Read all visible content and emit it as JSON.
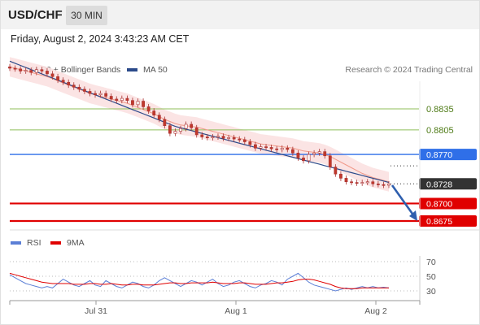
{
  "header": {
    "symbol": "USD/CHF",
    "timeframe": "30 MIN"
  },
  "datetime": "Friday, August 2, 2024 3:43:23 AM CET",
  "legend": [
    {
      "label": "MA 20 + Bollinger Bands",
      "color": "#f4a0a0"
    },
    {
      "label": "MA 50",
      "color": "#2b4a8a"
    }
  ],
  "credit": "Research © 2024 Trading Central",
  "rsi_legend": [
    {
      "label": "RSI",
      "color": "#5b7fd6"
    },
    {
      "label": "9MA",
      "color": "#e00000"
    }
  ],
  "chart_data": {
    "type": "line",
    "price_levels": [
      {
        "label": "0.8835",
        "value": 0.8835,
        "style": "resistance",
        "color": "#8fbf5a"
      },
      {
        "label": "0.8805",
        "value": 0.8805,
        "style": "resistance",
        "color": "#8fbf5a"
      },
      {
        "label": "0.8770",
        "value": 0.877,
        "style": "pivot",
        "color": "#2f6fe8"
      },
      {
        "label": "0.8728",
        "value": 0.8728,
        "style": "last",
        "color": "#333333"
      },
      {
        "label": "0.8700",
        "value": 0.87,
        "style": "support",
        "color": "#e00000"
      },
      {
        "label": "0.8675",
        "value": 0.8675,
        "style": "support",
        "color": "#e00000"
      }
    ],
    "price_close": [
      0.8893,
      0.8892,
      0.8889,
      0.889,
      0.8887,
      0.8891,
      0.8889,
      0.8885,
      0.8881,
      0.8876,
      0.8873,
      0.8869,
      0.8866,
      0.8863,
      0.886,
      0.8857,
      0.8855,
      0.8857,
      0.8853,
      0.8849,
      0.8847,
      0.885,
      0.8847,
      0.8841,
      0.8846,
      0.8838,
      0.8832,
      0.8826,
      0.882,
      0.8811,
      0.88,
      0.8803,
      0.8807,
      0.8813,
      0.8808,
      0.8798,
      0.8795,
      0.8794,
      0.8795,
      0.8796,
      0.8793,
      0.8794,
      0.8792,
      0.8791,
      0.8788,
      0.8784,
      0.8779,
      0.8781,
      0.878,
      0.8778,
      0.8777,
      0.8779,
      0.8777,
      0.8772,
      0.8765,
      0.8761,
      0.877,
      0.8772,
      0.8774,
      0.8768,
      0.8752,
      0.8742,
      0.8736,
      0.8731,
      0.873,
      0.8729,
      0.873,
      0.8731,
      0.8728,
      0.8727,
      0.8726,
      0.8728
    ],
    "ma20": [
      0.8895,
      0.8893,
      0.8891,
      0.8889,
      0.8887,
      0.8885,
      0.8883,
      0.8881,
      0.8878,
      0.8875,
      0.8872,
      0.8869,
      0.8866,
      0.8863,
      0.886,
      0.8857,
      0.8855,
      0.8853,
      0.8851,
      0.8849,
      0.8847,
      0.8845,
      0.8843,
      0.884,
      0.8837,
      0.8834,
      0.8831,
      0.8828,
      0.8824,
      0.882,
      0.8817,
      0.8814,
      0.8812,
      0.8811,
      0.881,
      0.8809,
      0.8807,
      0.8805,
      0.8803,
      0.8801,
      0.8799,
      0.8797,
      0.8795,
      0.8793,
      0.8791,
      0.8789,
      0.8787,
      0.8785,
      0.8784,
      0.8783,
      0.8782,
      0.8781,
      0.878,
      0.8779,
      0.8777,
      0.8775,
      0.8774,
      0.8773,
      0.8772,
      0.877,
      0.8767,
      0.8763,
      0.8759,
      0.8755,
      0.8751,
      0.8747,
      0.8743,
      0.874,
      0.8737,
      0.8735,
      0.8733,
      0.8731
    ],
    "ma50": [
      0.8903,
      0.89,
      0.8897,
      0.8894,
      0.8891,
      0.8888,
      0.8885,
      0.8882,
      0.8879,
      0.8876,
      0.8873,
      0.887,
      0.8867,
      0.8864,
      0.8861,
      0.8858,
      0.8855,
      0.8852,
      0.8849,
      0.8846,
      0.8843,
      0.884,
      0.8837,
      0.8834,
      0.8831,
      0.8828,
      0.8825,
      0.8822,
      0.8819,
      0.8816,
      0.8813,
      0.881,
      0.8808,
      0.8806,
      0.8804,
      0.8802,
      0.88,
      0.8798,
      0.8796,
      0.8794,
      0.8792,
      0.879,
      0.8788,
      0.8786,
      0.8784,
      0.8782,
      0.878,
      0.8778,
      0.8776,
      0.8774,
      0.8772,
      0.877,
      0.8768,
      0.8766,
      0.8764,
      0.8762,
      0.876,
      0.8758,
      0.8756,
      0.8754,
      0.8752,
      0.875,
      0.8748,
      0.8746,
      0.8744,
      0.8742,
      0.874,
      0.8738,
      0.8736,
      0.8734,
      0.8732,
      0.873
    ],
    "rsi": [
      52,
      48,
      44,
      40,
      38,
      36,
      34,
      36,
      34,
      40,
      46,
      42,
      38,
      36,
      40,
      44,
      38,
      36,
      44,
      40,
      36,
      34,
      38,
      42,
      40,
      36,
      34,
      38,
      44,
      48,
      44,
      40,
      36,
      40,
      44,
      42,
      38,
      42,
      46,
      40,
      36,
      38,
      42,
      44,
      40,
      36,
      34,
      38,
      40,
      44,
      42,
      38,
      46,
      50,
      54,
      48,
      42,
      38,
      36,
      34,
      32,
      30,
      32,
      34,
      32,
      34,
      36,
      34,
      36,
      34,
      35,
      34
    ],
    "rsi_ma": [
      54,
      52,
      50,
      48,
      46,
      44,
      42,
      41,
      40,
      40,
      40,
      40,
      39,
      39,
      39,
      40,
      40,
      39,
      39,
      40,
      39,
      38,
      38,
      39,
      39,
      38,
      38,
      38,
      39,
      40,
      41,
      41,
      40,
      40,
      41,
      41,
      41,
      41,
      42,
      41,
      40,
      40,
      40,
      41,
      41,
      40,
      39,
      39,
      39,
      40,
      41,
      41,
      42,
      43,
      45,
      46,
      46,
      45,
      43,
      41,
      39,
      36,
      34,
      33,
      33,
      33,
      34,
      34,
      34,
      34,
      34,
      34
    ],
    "rsi_levels": [
      70,
      50,
      30
    ],
    "x_ticks": [
      "Jul 31",
      "Aug 1",
      "Aug 2"
    ]
  }
}
